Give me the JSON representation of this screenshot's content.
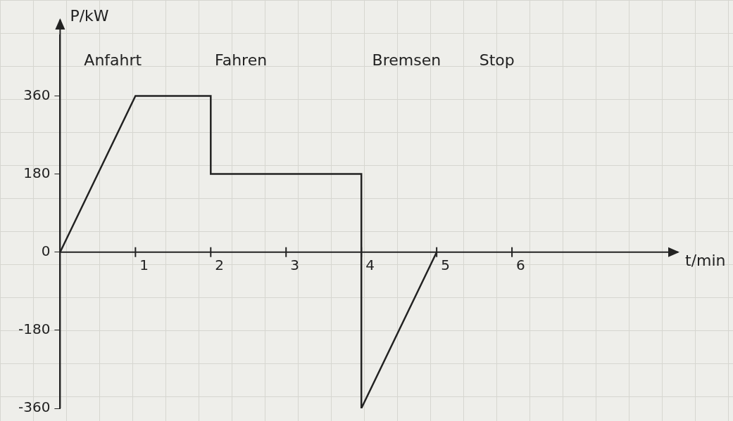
{
  "chart_data": {
    "type": "line",
    "xlabel": "t/min",
    "ylabel": "P/kW",
    "annotations": [
      {
        "text": "Anfahrt",
        "x": 0.7,
        "y": 440
      },
      {
        "text": "Fahren",
        "x": 2.4,
        "y": 440
      },
      {
        "text": "Bremsen",
        "x": 4.6,
        "y": 440
      },
      {
        "text": "Stop",
        "x": 5.8,
        "y": 440
      }
    ],
    "x": [
      0,
      1,
      2,
      2,
      4,
      4,
      5
    ],
    "values": [
      0,
      360,
      360,
      180,
      180,
      -360,
      0
    ],
    "color": "#222222",
    "xlim": [
      0,
      8
    ],
    "xticks": [
      1,
      2,
      3,
      4,
      5,
      6
    ],
    "ylim": [
      -360,
      500
    ],
    "yticks": [
      -360,
      -180,
      0,
      180,
      360
    ],
    "grid": false
  }
}
